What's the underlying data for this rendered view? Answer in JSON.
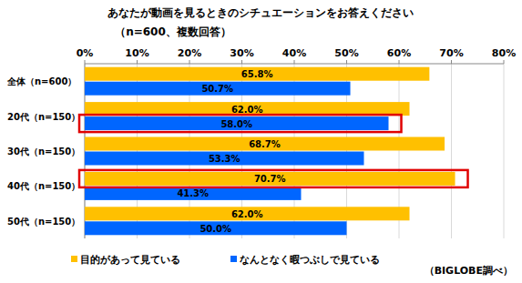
{
  "chart_data": {
    "type": "bar",
    "orientation": "horizontal",
    "title": "あなたが動画を見るときのシチュエーションをお答えください",
    "subtitle": "（n=600、複数回答）",
    "annotation": "（BIGLOBE調べ）",
    "categories": [
      "全体（n=600）",
      "20代（n=150）",
      "30代（n=150）",
      "40代（n=150）",
      "50代（n=150）"
    ],
    "series": [
      {
        "name": "目的があって見ている",
        "color": "#ffc000",
        "values": [
          65.8,
          62.0,
          68.7,
          70.7,
          62.0
        ],
        "value_labels": [
          "65.8%",
          "62.0%",
          "68.7%",
          "70.7%",
          "62.0%"
        ]
      },
      {
        "name": "なんとなく暇つぶしで見ている",
        "color": "#0066ff",
        "values": [
          50.7,
          58.0,
          53.3,
          41.3,
          50.0
        ],
        "value_labels": [
          "50.7%",
          "58.0%",
          "53.3%",
          "41.3%",
          "50.0%"
        ]
      }
    ],
    "xlim": [
      0,
      80
    ],
    "xticks": [
      {
        "value": 0,
        "label": "0%"
      },
      {
        "value": 10,
        "label": "10%"
      },
      {
        "value": 20,
        "label": "20%"
      },
      {
        "value": 30,
        "label": "30%"
      },
      {
        "value": 40,
        "label": "40%"
      },
      {
        "value": 50,
        "label": "50%"
      },
      {
        "value": 60,
        "label": "60%"
      },
      {
        "value": 70,
        "label": "70%"
      },
      {
        "value": 80,
        "label": "80%"
      }
    ],
    "grid": true,
    "data_labels": true,
    "legend": "bottom"
  }
}
